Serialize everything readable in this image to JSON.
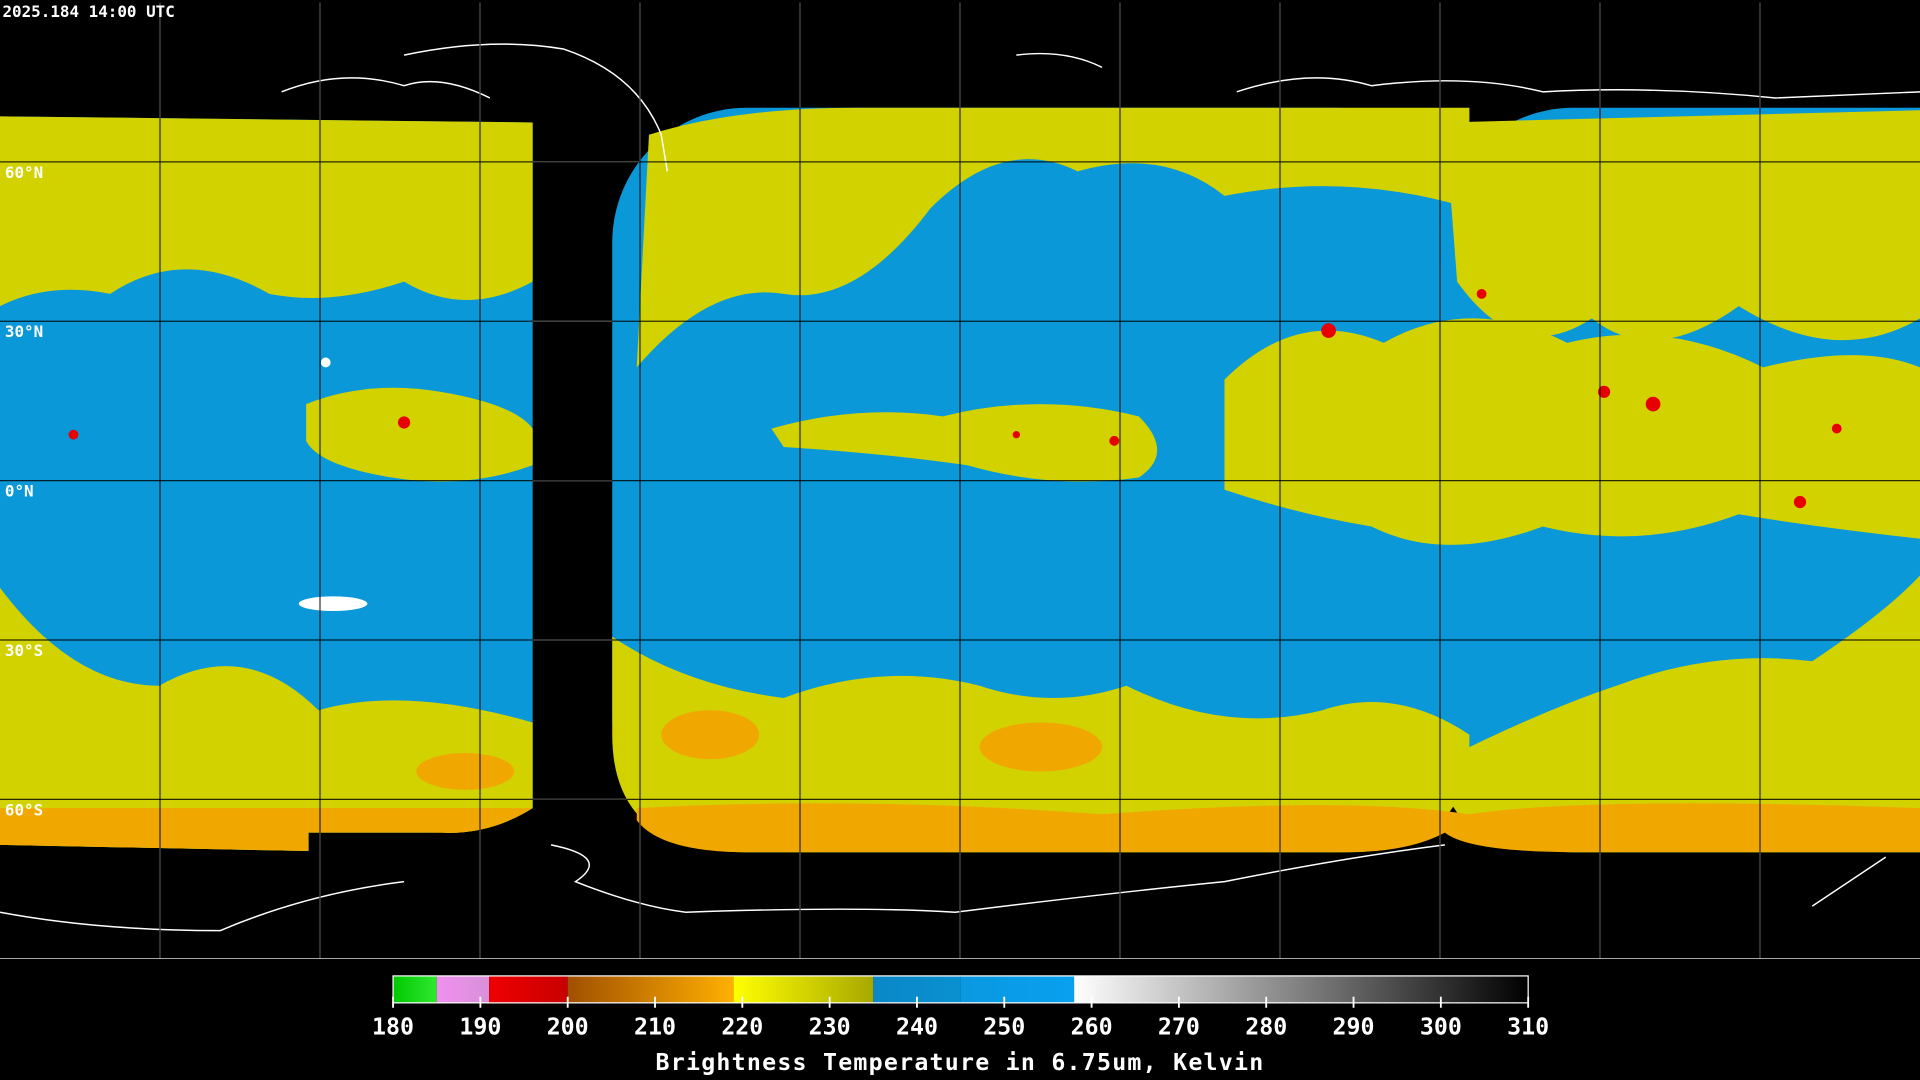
{
  "timestamp": "2025.184 14:00 UTC",
  "map": {
    "ylim": [
      -90,
      90
    ],
    "latitude_labels": [
      {
        "value": 60,
        "label": "60°N"
      },
      {
        "value": 30,
        "label": "30°N"
      },
      {
        "value": 0,
        "label": "0°N"
      },
      {
        "value": -30,
        "label": "30°S"
      },
      {
        "value": -60,
        "label": "60°S"
      }
    ]
  },
  "colorbar": {
    "title": "Brightness Temperature in 6.75um, Kelvin",
    "lim": [
      180,
      310
    ],
    "ticks": [
      180,
      190,
      200,
      210,
      220,
      230,
      240,
      250,
      260,
      270,
      280,
      290,
      300,
      310
    ],
    "segments": [
      {
        "from": 180,
        "to": 185,
        "colors": [
          "#00c800",
          "#30e830"
        ]
      },
      {
        "from": 185,
        "to": 191,
        "colors": [
          "#f090f0",
          "#d890d8"
        ]
      },
      {
        "from": 191,
        "to": 200,
        "colors": [
          "#f00000",
          "#c80000"
        ]
      },
      {
        "from": 200,
        "to": 219,
        "colors": [
          "#a05000",
          "#ffb000"
        ]
      },
      {
        "from": 219,
        "to": 235,
        "colors": [
          "#ffff00",
          "#a8a800"
        ]
      },
      {
        "from": 235,
        "to": 245,
        "colors": [
          "#0a88c8",
          "#0a90d0"
        ]
      },
      {
        "from": 245,
        "to": 258,
        "colors": [
          "#0a98e0",
          "#08a0f0"
        ]
      },
      {
        "from": 258,
        "to": 310,
        "colors": [
          "#ffffff",
          "#000000"
        ]
      }
    ]
  }
}
